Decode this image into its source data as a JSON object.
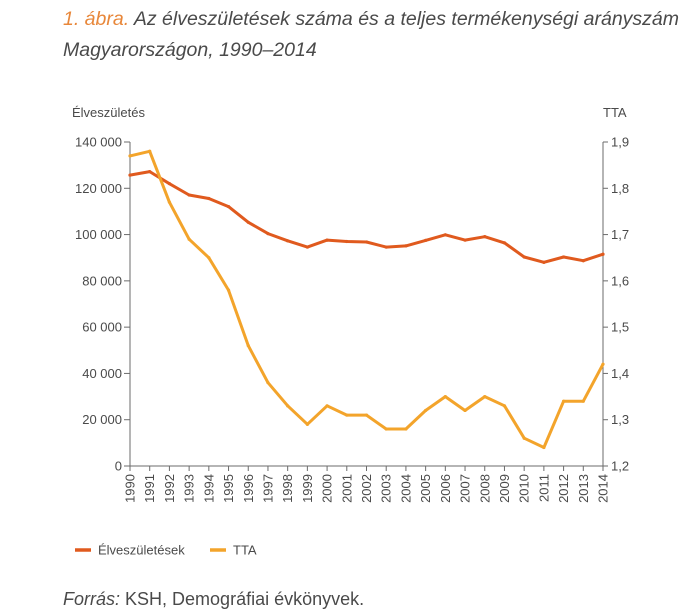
{
  "title": {
    "figure_label": "1. ábra.",
    "text": "Az élveszületések száma és a teljes termékenységi arányszám Magyarországon, 1990–2014"
  },
  "source": {
    "label": "Forrás:",
    "text": "KSH, Demográfiai évkönyvek."
  },
  "chart_data": {
    "type": "line",
    "y_left_label": "Élveszületés",
    "y_right_label": "TTA",
    "x": [
      "1990",
      "1991",
      "1992",
      "1993",
      "1994",
      "1995",
      "1996",
      "1997",
      "1998",
      "1999",
      "2000",
      "2001",
      "2002",
      "2003",
      "2004",
      "2005",
      "2006",
      "2007",
      "2008",
      "2009",
      "2010",
      "2011",
      "2012",
      "2013",
      "2014"
    ],
    "y_left_ticks": [
      "0",
      "20 000",
      "40 000",
      "60 000",
      "80 000",
      "100 000",
      "120 000",
      "140 000"
    ],
    "y_left_lim": [
      0,
      140000
    ],
    "y_right_ticks": [
      "1,2",
      "1,3",
      "1,4",
      "1,5",
      "1,6",
      "1,7",
      "1,8",
      "1,9"
    ],
    "y_right_lim": [
      1.2,
      1.9
    ],
    "grid": false,
    "legend_position": "bottom-left",
    "series": [
      {
        "name": "Élveszületések",
        "axis": "left",
        "color": "#e05a1e",
        "values": [
          125700,
          127200,
          122000,
          117100,
          115600,
          112100,
          105300,
          100400,
          97300,
          94600,
          97600,
          97000,
          96800,
          94600,
          95100,
          97500,
          99900,
          97600,
          99100,
          96400,
          90300,
          88000,
          90300,
          88700,
          91500
        ]
      },
      {
        "name": "TTA",
        "axis": "right",
        "color": "#f3a42b",
        "values": [
          1.87,
          1.88,
          1.77,
          1.69,
          1.65,
          1.58,
          1.46,
          1.38,
          1.33,
          1.29,
          1.33,
          1.31,
          1.31,
          1.28,
          1.28,
          1.32,
          1.35,
          1.32,
          1.35,
          1.33,
          1.26,
          1.24,
          1.34,
          1.34,
          1.42
        ]
      }
    ]
  }
}
